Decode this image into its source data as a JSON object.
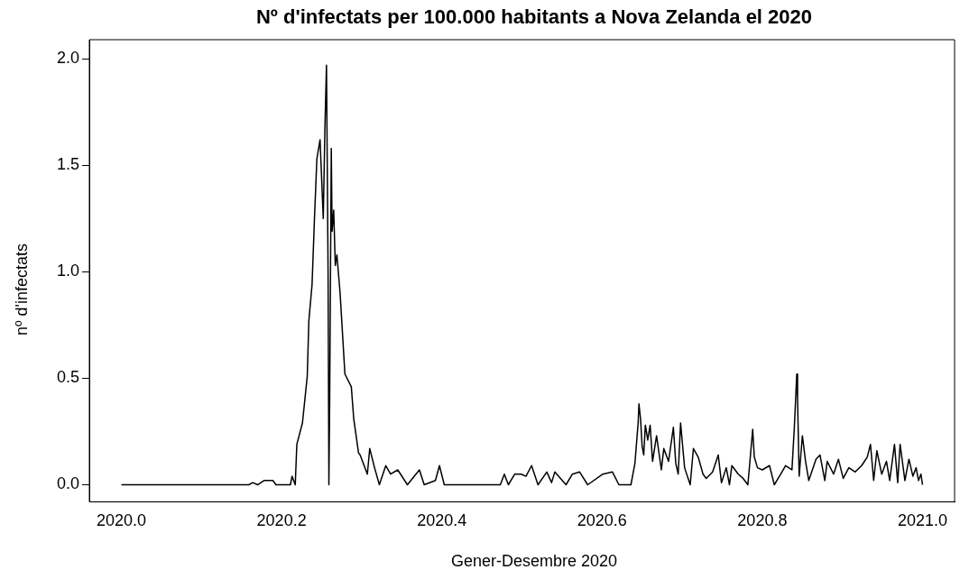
{
  "chart_data": {
    "type": "line",
    "title": "Nº d'infectats per 100.000 habitants a Nova Zelanda el 2020",
    "xlabel": "Gener-Desembre 2020",
    "ylabel": "nº d'infectats",
    "x": [
      2020.0,
      2020.159,
      2020.164,
      2020.17,
      2020.178,
      2020.189,
      2020.193,
      2020.211,
      2020.213,
      2020.217,
      2020.219,
      2020.226,
      2020.232,
      2020.234,
      2020.238,
      2020.241,
      2020.244,
      2020.248,
      2020.251,
      2020.252,
      2020.254,
      2020.256,
      2020.258,
      2020.259,
      2020.26,
      2020.262,
      2020.263,
      2020.265,
      2020.267,
      2020.269,
      2020.273,
      2020.279,
      2020.287,
      2020.29,
      2020.296,
      2020.298,
      2020.307,
      2020.31,
      2020.316,
      2020.322,
      2020.33,
      2020.336,
      2020.345,
      2020.357,
      2020.372,
      2020.378,
      2020.392,
      2020.397,
      2020.403,
      2020.409,
      2020.473,
      2020.478,
      2020.483,
      2020.491,
      2020.499,
      2020.505,
      2020.512,
      2020.52,
      2020.531,
      2020.537,
      2020.541,
      2020.555,
      2020.563,
      2020.572,
      2020.582,
      2020.601,
      2020.613,
      2020.621,
      2020.636,
      2020.641,
      2020.645,
      2020.646,
      2020.648,
      2020.65,
      2020.652,
      2020.654,
      2020.657,
      2020.66,
      2020.663,
      2020.668,
      2020.674,
      2020.677,
      2020.683,
      2020.689,
      2020.692,
      2020.695,
      2020.698,
      2020.703,
      2020.71,
      2020.714,
      2020.72,
      2020.726,
      2020.73,
      2020.738,
      2020.745,
      2020.749,
      2020.755,
      2020.759,
      2020.762,
      2020.77,
      2020.776,
      2020.782,
      2020.788,
      2020.79,
      2020.794,
      2020.8,
      2020.809,
      2020.815,
      2020.823,
      2020.829,
      2020.837,
      2020.84,
      2020.843,
      2020.844,
      2020.846,
      2020.85,
      2020.854,
      2020.858,
      2020.867,
      2020.872,
      2020.878,
      2020.881,
      2020.889,
      2020.895,
      2020.901,
      2020.908,
      2020.916,
      2020.924,
      2020.931,
      2020.935,
      2020.939,
      2020.943,
      2020.949,
      2020.955,
      2020.959,
      2020.965,
      2020.969,
      2020.972,
      2020.978,
      2020.983,
      2020.988,
      2020.992,
      2020.995,
      2020.998,
      2021.0
    ],
    "series": [
      {
        "color": "#000000",
        "values": [
          0,
          0,
          0.01,
          0,
          0.02,
          0.02,
          0,
          0,
          0.04,
          0,
          0.19,
          0.29,
          0.51,
          0.77,
          0.94,
          1.25,
          1.53,
          1.62,
          1.34,
          1.25,
          1.67,
          1.97,
          0.99,
          0,
          0.4,
          1.58,
          1.19,
          1.29,
          1.03,
          1.08,
          0.9,
          0.52,
          0.46,
          0.31,
          0.15,
          0.14,
          0.05,
          0.17,
          0.08,
          0,
          0.09,
          0.05,
          0.07,
          0,
          0.07,
          0,
          0.02,
          0.09,
          0,
          0,
          0,
          0.05,
          0,
          0.05,
          0.05,
          0.04,
          0.09,
          0,
          0.06,
          0.01,
          0.06,
          0,
          0.05,
          0.06,
          0,
          0.05,
          0.06,
          0,
          0,
          0.1,
          0.29,
          0.38,
          0.31,
          0.18,
          0.14,
          0.28,
          0.21,
          0.28,
          0.11,
          0.23,
          0.07,
          0.17,
          0.11,
          0.27,
          0.1,
          0.05,
          0.29,
          0.08,
          0,
          0.17,
          0.13,
          0.05,
          0.03,
          0.06,
          0.14,
          0.01,
          0.08,
          0,
          0.09,
          0.05,
          0.03,
          0,
          0.26,
          0.13,
          0.08,
          0.07,
          0.09,
          0,
          0.05,
          0.09,
          0.07,
          0.27,
          0.52,
          0.4,
          0.04,
          0.23,
          0.11,
          0.02,
          0.12,
          0.14,
          0.02,
          0.11,
          0.05,
          0.12,
          0.03,
          0.08,
          0.06,
          0.09,
          0.13,
          0.19,
          0.02,
          0.16,
          0.05,
          0.11,
          0.02,
          0.19,
          0.01,
          0.19,
          0.02,
          0.12,
          0.04,
          0.08,
          0.02,
          0.05,
          0
        ]
      }
    ],
    "xlim": [
      2019.96,
      2021.04
    ],
    "ylim": [
      -0.08,
      2.09
    ],
    "xticks": [
      {
        "value": 2020,
        "label": "2020.0"
      },
      {
        "value": 2020.2,
        "label": "2020.2"
      },
      {
        "value": 2020.4,
        "label": "2020.4"
      },
      {
        "value": 2020.6,
        "label": "2020.6"
      },
      {
        "value": 2020.8,
        "label": "2020.8"
      },
      {
        "value": 2021,
        "label": "2021.0"
      }
    ],
    "yticks": [
      {
        "value": 0,
        "label": "0.0"
      },
      {
        "value": 0.5,
        "label": "0.5"
      },
      {
        "value": 1,
        "label": "1.0"
      },
      {
        "value": 1.5,
        "label": "1.5"
      },
      {
        "value": 2,
        "label": "2.0"
      }
    ],
    "grid": false,
    "legend": false,
    "marker": "none",
    "line_style": "solid"
  }
}
